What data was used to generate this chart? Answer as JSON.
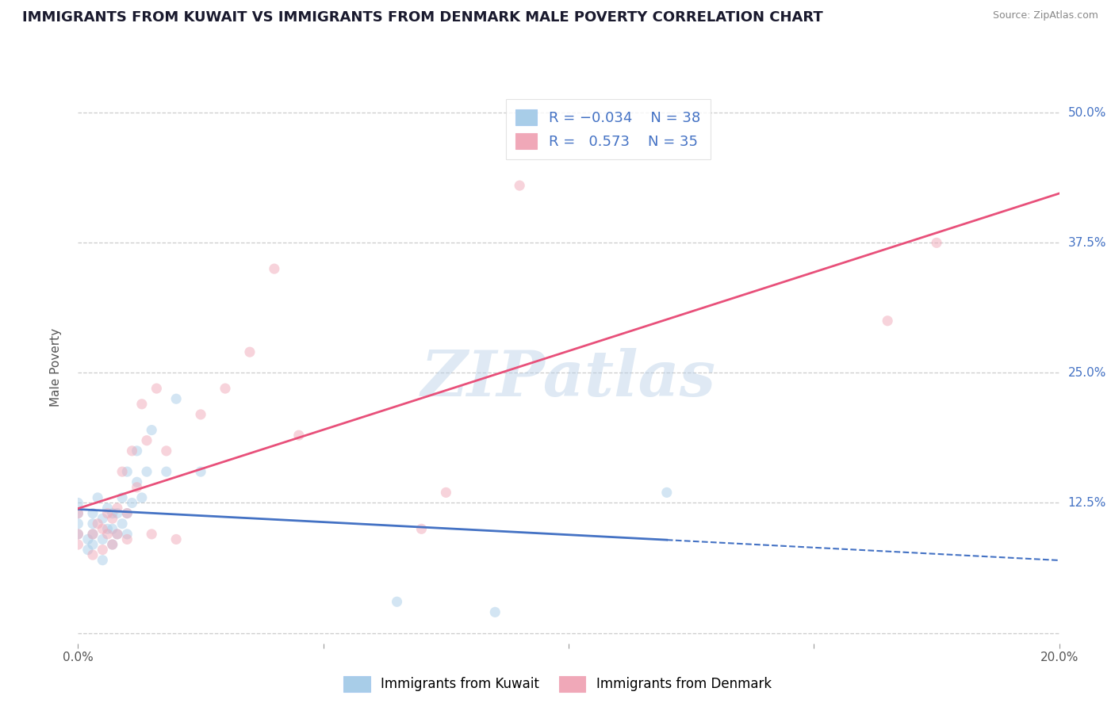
{
  "title": "IMMIGRANTS FROM KUWAIT VS IMMIGRANTS FROM DENMARK MALE POVERTY CORRELATION CHART",
  "source": "Source: ZipAtlas.com",
  "ylabel": "Male Poverty",
  "watermark": "ZIPatlas",
  "xlim": [
    0.0,
    0.2
  ],
  "ylim": [
    -0.01,
    0.52
  ],
  "xticks": [
    0.0,
    0.05,
    0.1,
    0.15,
    0.2
  ],
  "xticklabels": [
    "0.0%",
    "",
    "",
    "",
    "20.0%"
  ],
  "yticks": [
    0.0,
    0.125,
    0.25,
    0.375,
    0.5
  ],
  "yticklabels": [
    "",
    "12.5%",
    "25.0%",
    "37.5%",
    "50.0%"
  ],
  "color_kuwait": "#A8CDE8",
  "color_denmark": "#F0A8B8",
  "line_color_kuwait": "#4472C4",
  "line_color_denmark": "#E8507A",
  "kuwait_x": [
    0.0,
    0.0,
    0.0,
    0.0,
    0.002,
    0.002,
    0.003,
    0.003,
    0.003,
    0.003,
    0.004,
    0.005,
    0.005,
    0.005,
    0.006,
    0.006,
    0.007,
    0.007,
    0.007,
    0.008,
    0.008,
    0.009,
    0.009,
    0.01,
    0.01,
    0.01,
    0.011,
    0.012,
    0.012,
    0.013,
    0.014,
    0.015,
    0.018,
    0.02,
    0.025,
    0.065,
    0.085,
    0.12
  ],
  "kuwait_y": [
    0.095,
    0.105,
    0.115,
    0.125,
    0.08,
    0.09,
    0.085,
    0.095,
    0.105,
    0.115,
    0.13,
    0.07,
    0.09,
    0.11,
    0.1,
    0.12,
    0.085,
    0.1,
    0.115,
    0.095,
    0.115,
    0.105,
    0.13,
    0.095,
    0.115,
    0.155,
    0.125,
    0.145,
    0.175,
    0.13,
    0.155,
    0.195,
    0.155,
    0.225,
    0.155,
    0.03,
    0.02,
    0.135
  ],
  "denmark_x": [
    0.0,
    0.0,
    0.0,
    0.003,
    0.003,
    0.004,
    0.005,
    0.005,
    0.006,
    0.006,
    0.007,
    0.007,
    0.008,
    0.008,
    0.009,
    0.01,
    0.01,
    0.011,
    0.012,
    0.013,
    0.014,
    0.015,
    0.016,
    0.018,
    0.02,
    0.025,
    0.03,
    0.035,
    0.04,
    0.045,
    0.07,
    0.075,
    0.09,
    0.165,
    0.175
  ],
  "denmark_y": [
    0.085,
    0.095,
    0.115,
    0.075,
    0.095,
    0.105,
    0.08,
    0.1,
    0.095,
    0.115,
    0.085,
    0.11,
    0.095,
    0.12,
    0.155,
    0.09,
    0.115,
    0.175,
    0.14,
    0.22,
    0.185,
    0.095,
    0.235,
    0.175,
    0.09,
    0.21,
    0.235,
    0.27,
    0.35,
    0.19,
    0.1,
    0.135,
    0.43,
    0.3,
    0.375
  ],
  "background_color": "#FFFFFF",
  "grid_color": "#CCCCCC",
  "title_fontsize": 13,
  "axis_label_fontsize": 11,
  "tick_fontsize": 11,
  "marker_size": 90,
  "alpha": 0.5
}
